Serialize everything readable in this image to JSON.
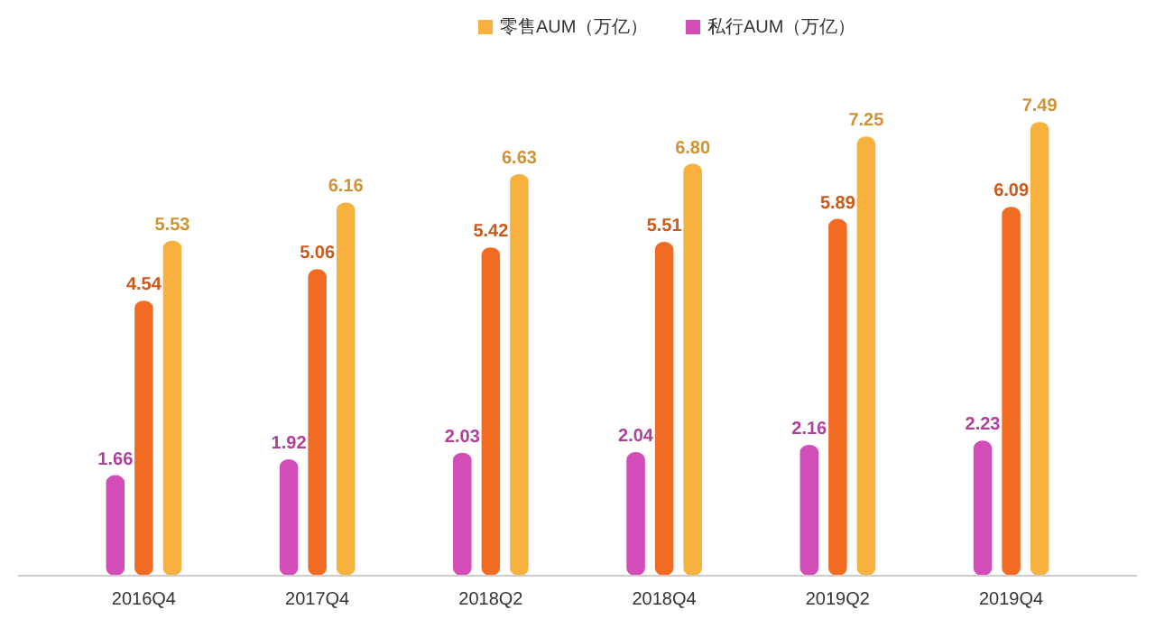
{
  "chart_data": {
    "type": "bar",
    "categories": [
      "2016Q4",
      "2017Q4",
      "2018Q2",
      "2018Q4",
      "2019Q2",
      "2019Q4"
    ],
    "series": [
      {
        "name": "私行AUM（万亿）",
        "color": "#d24db8",
        "values": [
          1.66,
          1.92,
          2.03,
          2.04,
          2.16,
          2.23
        ],
        "value_labels": [
          "1.66",
          "1.92",
          "2.03",
          "2.04",
          "2.16",
          "2.23"
        ]
      },
      {
        "color": "#f26b22",
        "values": [
          4.54,
          5.06,
          5.42,
          5.51,
          5.89,
          6.09
        ],
        "value_labels": [
          "4.54",
          "5.06",
          "5.42",
          "5.51",
          "5.89",
          "6.09"
        ]
      },
      {
        "name": "零售AUM（万亿）",
        "color": "#f8b03e",
        "values": [
          5.53,
          6.16,
          6.63,
          6.8,
          7.25,
          7.49
        ],
        "value_labels": [
          "5.53",
          "6.16",
          "6.63",
          "6.80",
          "7.25",
          "7.49"
        ]
      }
    ],
    "legend": "top",
    "grid": false
  }
}
